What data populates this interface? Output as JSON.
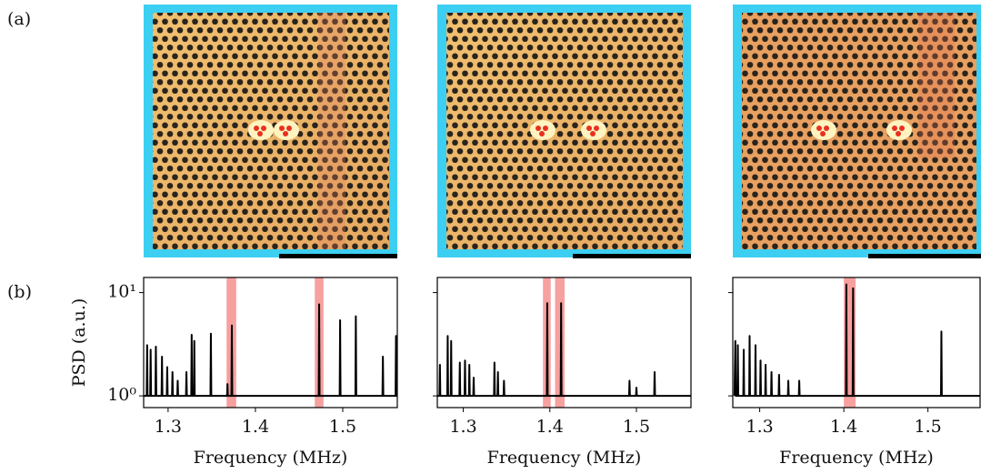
{
  "labels": {
    "a": "(a)",
    "b": "(b)"
  },
  "chart_data": [
    {
      "type": "line",
      "xlabel": "Frequency (MHz)",
      "ylabel": "PSD (a.u.)",
      "log_y": true,
      "xlim": [
        1.272,
        1.5625
      ],
      "xticks": [
        1.3,
        1.4,
        1.5
      ],
      "ylim": [
        0.77,
        14
      ],
      "yticks": [
        {
          "value": 1,
          "label": "10⁰"
        },
        {
          "value": 10,
          "label": "10¹"
        }
      ],
      "highlights": [
        [
          1.367,
          1.378
        ],
        [
          1.468,
          1.478
        ]
      ],
      "highlight_color": "#f7a0a0",
      "x": [
        1.272,
        1.2755,
        1.276,
        1.2765,
        1.2795,
        1.28,
        1.2805,
        1.2855,
        1.286,
        1.2865,
        1.2925,
        1.293,
        1.2935,
        1.2985,
        1.299,
        1.2995,
        1.3045,
        1.305,
        1.3055,
        1.3105,
        1.311,
        1.3115,
        1.3205,
        1.321,
        1.3215,
        1.3265,
        1.327,
        1.3275,
        1.3295,
        1.33,
        1.3305,
        1.3485,
        1.349,
        1.3495,
        1.3675,
        1.368,
        1.3685,
        1.3725,
        1.373,
        1.3735,
        1.4725,
        1.473,
        1.4735,
        1.4965,
        1.497,
        1.4975,
        1.5145,
        1.515,
        1.5155,
        1.5455,
        1.546,
        1.5465,
        1.5605,
        1.561,
        1.5615,
        1.5625
      ],
      "series": [
        {
          "color": "#000000",
          "values": [
            1,
            1,
            3.1,
            1,
            1,
            2.8,
            1,
            1,
            3.0,
            1,
            1,
            2.4,
            1,
            1,
            1.9,
            1,
            1,
            1.7,
            1,
            1,
            1.4,
            1,
            1,
            1.7,
            1,
            1,
            3.9,
            1,
            1,
            3.4,
            1,
            1,
            4.0,
            1,
            1,
            1.3,
            1,
            1,
            4.8,
            1,
            1,
            7.7,
            1,
            1,
            5.4,
            1,
            1,
            5.9,
            1,
            1,
            2.4,
            1,
            1,
            3.8,
            1,
            1
          ]
        }
      ]
    },
    {
      "type": "line",
      "xlabel": "Frequency (MHz)",
      "log_y": true,
      "xlim": [
        1.27,
        1.563
      ],
      "xticks": [
        1.3,
        1.4,
        1.5
      ],
      "ylim": [
        0.77,
        14
      ],
      "yticks": [
        1,
        10
      ],
      "show_ytick_labels": false,
      "highlights": [
        [
          1.392,
          1.401
        ],
        [
          1.406,
          1.417
        ]
      ],
      "highlight_color": "#f7a0a0",
      "x": [
        1.27,
        1.2725,
        1.273,
        1.2735,
        1.2815,
        1.282,
        1.2825,
        1.2855,
        1.286,
        1.2865,
        1.2955,
        1.296,
        1.2965,
        1.3015,
        1.302,
        1.3025,
        1.3065,
        1.307,
        1.3075,
        1.3115,
        1.312,
        1.3125,
        1.3355,
        1.336,
        1.3365,
        1.3395,
        1.34,
        1.3405,
        1.3465,
        1.347,
        1.3475,
        1.3965,
        1.397,
        1.3975,
        1.4125,
        1.413,
        1.4135,
        1.4915,
        1.492,
        1.4925,
        1.4995,
        1.5,
        1.5005,
        1.5205,
        1.521,
        1.5215,
        1.563
      ],
      "series": [
        {
          "color": "#000000",
          "values": [
            1,
            1,
            2.0,
            1,
            1,
            3.8,
            1,
            1,
            3.4,
            1,
            1,
            2.1,
            1,
            1,
            2.2,
            1,
            1,
            2.0,
            1,
            1,
            1.5,
            1,
            1,
            2.1,
            1,
            1,
            1.7,
            1,
            1,
            1.4,
            1,
            1,
            7.9,
            1,
            1,
            7.9,
            1,
            1,
            1.4,
            1,
            1,
            1.2,
            1,
            1,
            1.7,
            1,
            1
          ]
        }
      ]
    },
    {
      "type": "line",
      "xlabel": "Frequency (MHz)",
      "log_y": true,
      "xlim": [
        1.268,
        1.562
      ],
      "xticks": [
        1.3,
        1.4,
        1.5
      ],
      "ylim": [
        0.77,
        14
      ],
      "yticks": [
        1,
        10
      ],
      "show_ytick_labels": false,
      "highlights": [
        [
          1.4,
          1.414
        ]
      ],
      "highlight_color": "#f7a0a0",
      "x": [
        1.27,
        1.271,
        1.2715,
        1.2735,
        1.274,
        1.2745,
        1.2805,
        1.281,
        1.2815,
        1.2875,
        1.288,
        1.2885,
        1.2945,
        1.295,
        1.2955,
        1.3005,
        1.301,
        1.3015,
        1.3065,
        1.307,
        1.3075,
        1.3135,
        1.314,
        1.3145,
        1.3225,
        1.323,
        1.3235,
        1.3335,
        1.334,
        1.3345,
        1.3465,
        1.347,
        1.3475,
        1.4025,
        1.403,
        1.4035,
        1.4105,
        1.411,
        1.4115,
        1.5155,
        1.516,
        1.5165,
        1.562
      ],
      "series": [
        {
          "color": "#000000",
          "values": [
            1,
            3.4,
            1,
            1,
            3.1,
            1,
            1,
            2.8,
            1,
            1,
            3.8,
            1,
            1,
            3.1,
            1,
            1,
            2.2,
            1,
            1,
            2.0,
            1,
            1,
            1.7,
            1,
            1,
            1.6,
            1,
            1,
            1.4,
            1,
            1,
            1.4,
            1,
            1,
            12,
            1,
            1,
            11,
            1,
            1,
            4.2,
            1,
            1
          ]
        }
      ]
    }
  ]
}
